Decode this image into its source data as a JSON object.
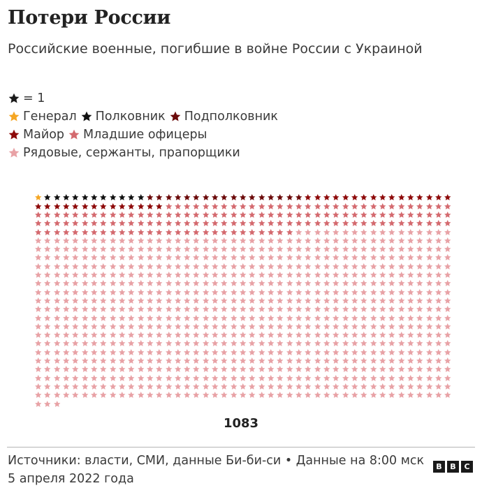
{
  "header": {
    "title": "Потери России",
    "subtitle": "Российские военные, погибшие в войне России с Украиной"
  },
  "legend": {
    "unit_label": "= 1",
    "unit_color": "#1a1a1a",
    "items": [
      {
        "label": "Генерал",
        "color": "#f5a623"
      },
      {
        "label": "Полковник",
        "color": "#111111"
      },
      {
        "label": "Подполковник",
        "color": "#6b0a0a"
      },
      {
        "label": "Майор",
        "color": "#8e0a0a"
      },
      {
        "label": "Младшие офицеры",
        "color": "#d46a6f"
      },
      {
        "label": "Рядовые, сержанты, прапорщики",
        "color": "#e8a2a6"
      }
    ]
  },
  "chart_data": {
    "type": "table",
    "subtype": "unit-pictogram",
    "title": "Потери России",
    "subtitle": "Российские военные, погибшие в войне России с Украиной",
    "unit": "1 star = 1 person",
    "columns": 45,
    "categories": [
      "Генерал",
      "Полковник",
      "Подполковник",
      "Майор",
      "Младшие офицеры",
      "Рядовые, сержанты, прапорщики"
    ],
    "values": [
      1,
      11,
      17,
      30,
      149,
      875
    ],
    "colors": [
      "#f5a623",
      "#111111",
      "#6b0a0a",
      "#8e0a0a",
      "#d46a6f",
      "#e8a2a6"
    ],
    "total": 1083,
    "legend_position": "top"
  },
  "total_label": "1083",
  "footer": {
    "source": "Источники: власти, СМИ, данные Би-би-си • Данные на 8:00 мск 5 апреля 2022 года",
    "logo_letters": [
      "B",
      "B",
      "C"
    ]
  }
}
